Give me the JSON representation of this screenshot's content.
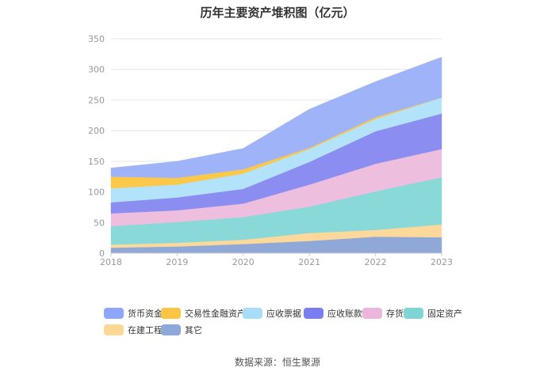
{
  "chart_data": {
    "type": "area",
    "stacked": true,
    "title": "历年主要资产堆积图（亿元）",
    "categories": [
      "2018",
      "2019",
      "2020",
      "2021",
      "2022",
      "2023"
    ],
    "ylim": [
      0,
      350
    ],
    "yticks": [
      0,
      50,
      100,
      150,
      200,
      250,
      300,
      350
    ],
    "grid": true,
    "legend_position": "bottom",
    "series": [
      {
        "name": "其它",
        "color": "#8fa8d8",
        "values": [
          9,
          11,
          15,
          20,
          27,
          26
        ]
      },
      {
        "name": "在建工程",
        "color": "#fcd99a",
        "values": [
          5,
          6,
          7,
          13,
          11,
          21
        ]
      },
      {
        "name": "固定资产",
        "color": "#8ad9d9",
        "values": [
          30,
          34,
          37,
          43,
          63,
          77
        ]
      },
      {
        "name": "存货",
        "color": "#eebedf",
        "values": [
          21,
          19,
          22,
          36,
          45,
          46
        ]
      },
      {
        "name": "应收账款",
        "color": "#8b8df0",
        "values": [
          18,
          21,
          24,
          37,
          53,
          58
        ]
      },
      {
        "name": "应收票据",
        "color": "#b2e3fb",
        "values": [
          23,
          21,
          25,
          21,
          20,
          26
        ]
      },
      {
        "name": "交易性金融资产",
        "color": "#fcc84a",
        "values": [
          19,
          11,
          7,
          2,
          3,
          0
        ]
      },
      {
        "name": "货币资金",
        "color": "#9fb4f8",
        "values": [
          14,
          27,
          34,
          63,
          58,
          66
        ]
      }
    ]
  },
  "legend": [
    {
      "label": "货币资金",
      "color": "#8ea6fb"
    },
    {
      "label": "交易性金融资产",
      "color": "#fcc545"
    },
    {
      "label": "应收票据",
      "color": "#a8ddf8"
    },
    {
      "label": "应收账款",
      "color": "#7b7ef0"
    },
    {
      "label": "存货",
      "color": "#ebb5dc"
    },
    {
      "label": "固定资产",
      "color": "#7fd4d4"
    },
    {
      "label": "在建工程",
      "color": "#fcd796"
    },
    {
      "label": "其它",
      "color": "#8ea8d8"
    }
  ],
  "source": "数据来源：恒生聚源"
}
